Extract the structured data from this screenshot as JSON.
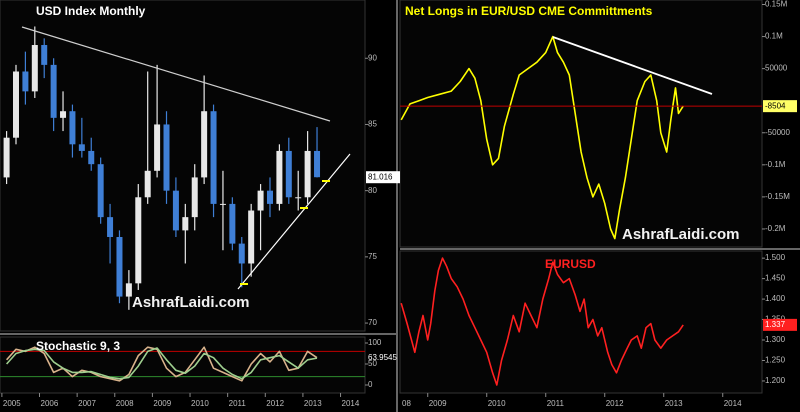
{
  "chart_data": [
    {
      "type": "candlestick",
      "title": "USD Index Monthly",
      "title_color": "#ffffff",
      "watermark": "AshrafLaidi.com",
      "x": [
        2005.125,
        2005.375,
        2005.625,
        2005.875,
        2006.125,
        2006.375,
        2006.625,
        2006.875,
        2007.125,
        2007.375,
        2007.625,
        2007.875,
        2008.125,
        2008.375,
        2008.625,
        2008.875,
        2009.125,
        2009.375,
        2009.625,
        2009.875,
        2010.125,
        2010.375,
        2010.625,
        2010.875,
        2011.125,
        2011.375,
        2011.625,
        2011.875,
        2012.125,
        2012.375,
        2012.625,
        2012.875,
        2013.125,
        2013.375
      ],
      "open": [
        81,
        84,
        89,
        87.5,
        91,
        89.5,
        85.5,
        86,
        83.5,
        83,
        82,
        78,
        76.5,
        72,
        73,
        79.5,
        81.5,
        85,
        80,
        77,
        78,
        81,
        86,
        79,
        79,
        76,
        74.5,
        78.5,
        80,
        79,
        83,
        79.5,
        79.5,
        83
      ],
      "high": [
        84.5,
        89.5,
        90.5,
        92.4,
        91.5,
        90,
        87.5,
        86.5,
        85.5,
        84,
        82.5,
        79,
        77,
        74,
        80.5,
        89,
        89.5,
        86,
        81,
        79,
        82,
        88.7,
        86.5,
        81.5,
        79.5,
        76.5,
        79,
        80.5,
        81,
        83.5,
        84,
        81.5,
        84.5,
        84.8
      ],
      "low": [
        80.5,
        83.5,
        86.5,
        87,
        88.5,
        84.5,
        84.5,
        82.5,
        82.5,
        81.5,
        77.5,
        74.5,
        71.5,
        71,
        72.5,
        79,
        81,
        79,
        76.5,
        74.5,
        77,
        80.5,
        78,
        75.5,
        75.5,
        72.7,
        73.5,
        75.5,
        78,
        78.5,
        79,
        78.5,
        79,
        81
      ],
      "close": [
        84,
        89,
        87.5,
        91,
        89.5,
        85.5,
        86,
        83.5,
        83,
        82,
        78,
        76.5,
        72,
        73,
        79.5,
        81.5,
        85,
        80,
        77,
        78,
        81,
        86,
        79,
        79,
        76,
        74.5,
        78.5,
        80,
        79,
        83,
        79.5,
        79.5,
        83,
        81.016
      ],
      "up_color": "#e8e8e8",
      "down_color": "#3f7fd6",
      "label_box": "#ffffff",
      "label_text": "#000000",
      "xlim": [
        2004.95,
        2014.65
      ],
      "ylim": [
        69.4,
        94.4
      ],
      "yticks": [
        70,
        75,
        80,
        85,
        90
      ]
    },
    {
      "type": "line",
      "title": "Stochastic 9, 3",
      "title_color": "#ffffff",
      "x": [
        2005.125,
        2005.375,
        2005.625,
        2005.875,
        2006.125,
        2006.375,
        2006.625,
        2006.875,
        2007.125,
        2007.375,
        2007.625,
        2007.875,
        2008.125,
        2008.375,
        2008.625,
        2008.875,
        2009.125,
        2009.375,
        2009.625,
        2009.875,
        2010.125,
        2010.375,
        2010.625,
        2010.875,
        2011.125,
        2011.375,
        2011.625,
        2011.875,
        2012.125,
        2012.375,
        2012.625,
        2012.875,
        2013.125,
        2013.375
      ],
      "series": [
        {
          "color": "#d9b38c",
          "values": [
            60,
            85,
            80,
            90,
            75,
            30,
            40,
            20,
            35,
            30,
            20,
            15,
            10,
            25,
            70,
            90,
            85,
            40,
            20,
            30,
            60,
            90,
            40,
            30,
            20,
            10,
            50,
            75,
            55,
            80,
            35,
            40,
            80,
            65
          ]
        },
        {
          "color": "#9fcf8f",
          "values": [
            50,
            75,
            82,
            85,
            82,
            55,
            40,
            30,
            30,
            32,
            25,
            18,
            15,
            18,
            45,
            80,
            88,
            60,
            35,
            28,
            45,
            75,
            65,
            40,
            25,
            15,
            30,
            60,
            65,
            70,
            55,
            40,
            60,
            63.9545
          ]
        }
      ],
      "levels": [
        {
          "value": 80,
          "color": "#c00000"
        },
        {
          "value": 20,
          "color": "#2e8b2e"
        }
      ],
      "label_text": "#ffffff",
      "xlim": [
        2004.95,
        2014.65
      ],
      "ylim": [
        0,
        100
      ],
      "yticks": [
        0,
        50,
        100
      ],
      "xticks": [
        2005,
        2006,
        2007,
        2008,
        2009,
        2010,
        2011,
        2012,
        2013,
        2014
      ]
    },
    {
      "type": "line",
      "title": "Net Longs in EUR/USD CME Committments",
      "title_color": "#ffff00",
      "watermark": "AshrafLaidi.com",
      "x": [
        2008.55,
        2008.7,
        2008.85,
        2009.0,
        2009.2,
        2009.4,
        2009.55,
        2009.7,
        2009.8,
        2009.9,
        2010.0,
        2010.1,
        2010.2,
        2010.3,
        2010.45,
        2010.55,
        2010.7,
        2010.85,
        2011.0,
        2011.12,
        2011.2,
        2011.3,
        2011.4,
        2011.5,
        2011.6,
        2011.7,
        2011.8,
        2011.9,
        2012.0,
        2012.1,
        2012.17,
        2012.25,
        2012.35,
        2012.45,
        2012.55,
        2012.68,
        2012.78,
        2012.88,
        2012.95,
        2013.05,
        2013.12,
        2013.2,
        2013.25,
        2013.33
      ],
      "series": [
        {
          "color": "#ffff00",
          "values": [
            -30000,
            -5000,
            0,
            5000,
            10000,
            15000,
            30000,
            50000,
            35000,
            0,
            -60000,
            -100000,
            -90000,
            -40000,
            10000,
            40000,
            50000,
            60000,
            75000,
            100000,
            75000,
            60000,
            40000,
            -20000,
            -80000,
            -120000,
            -150000,
            -130000,
            -160000,
            -200000,
            -215000,
            -170000,
            -120000,
            -60000,
            0,
            30000,
            40000,
            0,
            -50000,
            -80000,
            -30000,
            20000,
            -20000,
            -8504
          ]
        }
      ],
      "last_line": "#c00000",
      "label_box": "#ffff66",
      "label_text": "#000000",
      "xlim": [
        2008.53,
        2015.14
      ],
      "ylim": [
        -225000,
        157000
      ],
      "yticks": [
        {
          "value": 150000,
          "label": "0.15M"
        },
        {
          "value": 100000,
          "label": "0.1M"
        },
        50000,
        -50000,
        {
          "value": -100000,
          "label": "-0.1M"
        },
        {
          "value": -150000,
          "label": "-0.15M"
        },
        {
          "value": -200000,
          "label": "-0.2M"
        }
      ]
    },
    {
      "type": "line",
      "title": "EURUSD",
      "title_color": "#ff2020",
      "x": [
        2008.55,
        2008.65,
        2008.78,
        2008.85,
        2008.92,
        2009.0,
        2009.05,
        2009.12,
        2009.18,
        2009.25,
        2009.32,
        2009.4,
        2009.5,
        2009.6,
        2009.7,
        2009.8,
        2009.9,
        2010.0,
        2010.1,
        2010.17,
        2010.25,
        2010.35,
        2010.45,
        2010.55,
        2010.65,
        2010.75,
        2010.85,
        2010.95,
        2011.05,
        2011.12,
        2011.2,
        2011.3,
        2011.4,
        2011.5,
        2011.58,
        2011.65,
        2011.72,
        2011.8,
        2011.88,
        2011.95,
        2012.05,
        2012.12,
        2012.2,
        2012.28,
        2012.38,
        2012.45,
        2012.55,
        2012.62,
        2012.7,
        2012.78,
        2012.85,
        2012.95,
        2013.05,
        2013.15,
        2013.25,
        2013.33
      ],
      "series": [
        {
          "color": "#ff2020",
          "values": [
            1.39,
            1.34,
            1.27,
            1.32,
            1.36,
            1.3,
            1.34,
            1.42,
            1.47,
            1.5,
            1.48,
            1.45,
            1.43,
            1.4,
            1.36,
            1.33,
            1.3,
            1.27,
            1.22,
            1.19,
            1.25,
            1.3,
            1.36,
            1.32,
            1.39,
            1.36,
            1.33,
            1.4,
            1.45,
            1.49,
            1.46,
            1.44,
            1.45,
            1.41,
            1.37,
            1.4,
            1.33,
            1.35,
            1.31,
            1.33,
            1.27,
            1.24,
            1.22,
            1.25,
            1.28,
            1.3,
            1.31,
            1.28,
            1.33,
            1.34,
            1.3,
            1.28,
            1.3,
            1.31,
            1.32,
            1.337
          ]
        }
      ],
      "label_box": "#ff2020",
      "label_text": "#ffffff",
      "xlim": [
        2008.53,
        2015.14
      ],
      "ylim": [
        1.173,
        1.515
      ],
      "yticks": [
        {
          "value": 1.5,
          "label": "1.500"
        },
        {
          "value": 1.45,
          "label": "1.450"
        },
        {
          "value": 1.4,
          "label": "1.400"
        },
        {
          "value": 1.35,
          "label": "1.350"
        },
        {
          "value": 1.3,
          "label": "1.300"
        },
        {
          "value": 1.25,
          "label": "1.250"
        },
        {
          "value": 1.2,
          "label": "1.200"
        }
      ],
      "xticks": [
        {
          "value": 2008,
          "label": "08"
        },
        2009,
        2010,
        2011,
        2012,
        2013,
        2014
      ]
    }
  ]
}
